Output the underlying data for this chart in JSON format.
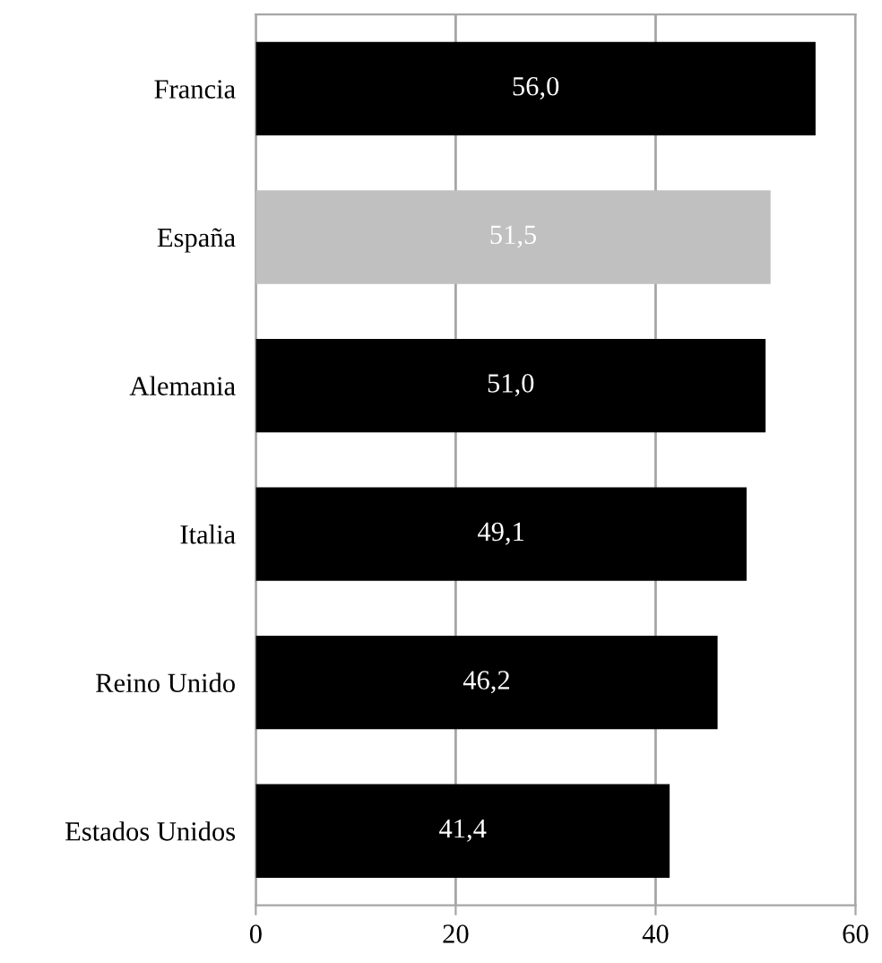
{
  "chart_data": {
    "type": "bar",
    "orientation": "horizontal",
    "categories": [
      "Francia",
      "España",
      "Alemania",
      "Italia",
      "Reino Unido",
      "Estados Unidos"
    ],
    "values": [
      56.0,
      51.5,
      51.0,
      49.1,
      46.2,
      41.4
    ],
    "colors": [
      "#000000",
      "#c0c0c0",
      "#000000",
      "#000000",
      "#000000",
      "#000000"
    ],
    "value_labels": [
      "56,0",
      "51,5",
      "51,0",
      "49,1",
      "46,2",
      "41,4"
    ],
    "xlim": [
      0,
      60
    ],
    "xticks": [
      0,
      20,
      40,
      60
    ],
    "grid": "x"
  }
}
